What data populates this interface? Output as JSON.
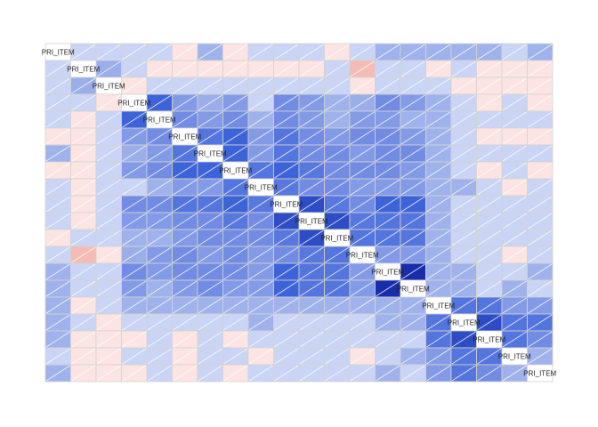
{
  "chart_data": {
    "type": "heatmap",
    "title": "",
    "xlabel": "",
    "ylabel": "",
    "value_range": [
      -1,
      1
    ],
    "colors": {
      "negative": "#f4b6b0",
      "zero": "#ffffff",
      "positive": "#0f1f9e",
      "mid_positive": "#3d63d8",
      "cell_border": "#d4d4d4",
      "slash": "#ffffff"
    },
    "grid": true,
    "legend": "none",
    "glyph": "shade with diagonal slash",
    "variables": [
      "PRI_ITEM",
      "PRI_ITEM",
      "PRI_ITEM",
      "PRI_ITEM",
      "PRI_ITEM",
      "PRI_ITEM",
      "PRI_ITEM",
      "PRI_ITEM",
      "PRI_ITEM",
      "PRI_ITEM",
      "PRI_ITEM",
      "PRI_ITEM",
      "PRI_ITEM",
      "PRI_ITEM",
      "PRI_ITEM",
      "PRI_ITEM",
      "PRI_ITEM",
      "PRI_ITEM",
      "PRI_ITEM",
      "PRI_ITEM"
    ],
    "matrix": [
      [
        1.0,
        0.12,
        0.12,
        0.12,
        0.12,
        -0.05,
        0.3,
        -0.05,
        0.12,
        0.12,
        0.12,
        -0.05,
        0.12,
        0.3,
        0.3,
        0.3,
        0.3,
        0.3,
        0.12,
        0.3
      ],
      [
        0.12,
        1.0,
        0.32,
        0.12,
        -0.05,
        -0.05,
        -0.05,
        -0.05,
        -0.05,
        -0.05,
        -0.05,
        0.12,
        -0.32,
        0.12,
        0.12,
        -0.05,
        0.12,
        -0.05,
        -0.05,
        -0.05
      ],
      [
        0.12,
        0.32,
        1.0,
        -0.05,
        0.12,
        0.12,
        0.12,
        0.12,
        0.12,
        0.12,
        0.12,
        0.12,
        -0.05,
        0.12,
        0.12,
        0.12,
        -0.05,
        -0.05,
        -0.05,
        -0.05
      ],
      [
        0.12,
        0.12,
        -0.05,
        1.0,
        0.72,
        0.42,
        0.32,
        0.42,
        0.12,
        0.5,
        0.42,
        0.3,
        0.32,
        0.5,
        0.42,
        0.3,
        0.12,
        -0.05,
        0.12,
        -0.05
      ],
      [
        0.12,
        -0.05,
        0.12,
        0.72,
        1.0,
        0.5,
        0.42,
        0.5,
        0.3,
        0.5,
        0.42,
        0.3,
        0.42,
        0.42,
        0.3,
        0.3,
        0.12,
        0.12,
        0.12,
        0.12
      ],
      [
        -0.05,
        -0.05,
        0.12,
        0.42,
        0.5,
        1.0,
        0.62,
        0.72,
        0.42,
        0.62,
        0.5,
        0.42,
        0.5,
        0.5,
        0.42,
        0.3,
        0.12,
        -0.05,
        -0.05,
        -0.05
      ],
      [
        0.3,
        -0.05,
        0.12,
        0.32,
        0.42,
        0.62,
        1.0,
        0.72,
        0.42,
        0.62,
        0.5,
        0.5,
        0.42,
        0.5,
        0.5,
        0.3,
        0.12,
        0.12,
        0.12,
        0.12
      ],
      [
        -0.05,
        -0.05,
        0.12,
        0.42,
        0.5,
        0.72,
        0.72,
        1.0,
        0.62,
        0.72,
        0.6,
        0.5,
        0.5,
        0.5,
        0.42,
        0.3,
        0.12,
        -0.05,
        0.12,
        -0.05
      ],
      [
        0.12,
        -0.05,
        0.12,
        0.12,
        0.3,
        0.42,
        0.42,
        0.62,
        1.0,
        0.6,
        0.5,
        0.5,
        0.42,
        0.42,
        0.42,
        0.3,
        0.3,
        0.12,
        -0.05,
        0.12
      ],
      [
        0.12,
        -0.05,
        0.12,
        0.5,
        0.5,
        0.62,
        0.62,
        0.72,
        0.6,
        1.0,
        0.8,
        0.6,
        0.5,
        0.72,
        0.72,
        0.3,
        0.12,
        0.12,
        0.12,
        0.12
      ],
      [
        0.12,
        -0.05,
        0.12,
        0.42,
        0.42,
        0.5,
        0.5,
        0.6,
        0.5,
        0.8,
        1.0,
        0.8,
        0.6,
        0.62,
        0.62,
        0.3,
        0.12,
        0.12,
        0.12,
        0.12
      ],
      [
        -0.05,
        0.12,
        0.12,
        0.3,
        0.3,
        0.42,
        0.5,
        0.5,
        0.5,
        0.6,
        0.8,
        1.0,
        0.62,
        0.62,
        0.62,
        0.3,
        0.12,
        0.12,
        0.12,
        0.12
      ],
      [
        0.12,
        -0.32,
        -0.05,
        0.32,
        0.42,
        0.5,
        0.42,
        0.5,
        0.42,
        0.5,
        0.6,
        0.62,
        1.0,
        0.42,
        0.42,
        0.3,
        0.12,
        0.12,
        -0.05,
        0.12
      ],
      [
        0.3,
        0.12,
        0.12,
        0.5,
        0.42,
        0.5,
        0.5,
        0.5,
        0.42,
        0.72,
        0.62,
        0.62,
        0.42,
        1.0,
        0.92,
        0.3,
        0.3,
        0.12,
        0.12,
        0.3
      ],
      [
        0.3,
        0.12,
        0.12,
        0.42,
        0.3,
        0.42,
        0.5,
        0.42,
        0.42,
        0.72,
        0.62,
        0.62,
        0.42,
        0.92,
        1.0,
        0.3,
        0.3,
        0.12,
        0.3,
        0.12
      ],
      [
        0.3,
        -0.05,
        0.12,
        0.3,
        0.3,
        0.3,
        0.3,
        0.3,
        0.3,
        0.3,
        0.3,
        0.3,
        0.3,
        0.3,
        0.3,
        1.0,
        0.62,
        0.62,
        0.42,
        0.42
      ],
      [
        0.3,
        0.12,
        -0.05,
        0.12,
        0.12,
        0.12,
        0.12,
        0.12,
        0.3,
        0.12,
        0.12,
        0.12,
        0.12,
        0.3,
        0.3,
        0.62,
        1.0,
        0.8,
        0.62,
        0.62
      ],
      [
        0.3,
        -0.05,
        -0.05,
        -0.05,
        0.12,
        -0.05,
        0.12,
        -0.05,
        0.12,
        0.12,
        0.12,
        0.12,
        0.12,
        0.12,
        0.12,
        0.62,
        0.8,
        1.0,
        0.62,
        0.5
      ],
      [
        0.12,
        -0.05,
        -0.05,
        0.12,
        0.12,
        -0.05,
        0.12,
        0.12,
        -0.05,
        0.12,
        0.12,
        0.12,
        -0.05,
        0.12,
        0.3,
        0.42,
        0.62,
        0.62,
        1.0,
        0.3
      ],
      [
        0.3,
        -0.05,
        -0.05,
        -0.05,
        0.12,
        -0.05,
        0.12,
        -0.05,
        0.12,
        0.12,
        0.12,
        0.12,
        0.12,
        0.3,
        0.12,
        0.42,
        0.62,
        0.5,
        0.3,
        1.0
      ]
    ]
  }
}
